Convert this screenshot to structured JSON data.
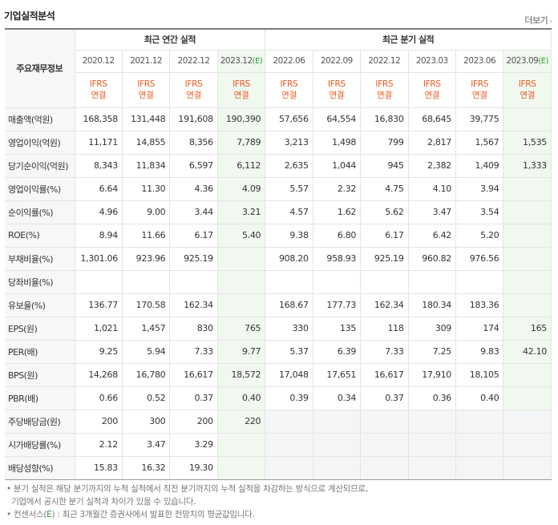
{
  "header": {
    "title": "기업실적분석",
    "more_label": "더보기",
    "more_arrow": "›"
  },
  "table": {
    "row_header_label": "주요재무정보",
    "groups": {
      "annual": "최근 연간 실적",
      "quarter": "최근 분기 실적"
    },
    "annual_periods": [
      "2020.12",
      "2021.12",
      "2022.12",
      "2023.12"
    ],
    "annual_est_suffix": "(E)",
    "quarter_periods": [
      "2022.06",
      "2022.09",
      "2022.12",
      "2023.03",
      "2023.06",
      "2023.09"
    ],
    "quarter_est_suffix": "(E)",
    "ifrs_top": "IFRS",
    "ifrs_bottom": "연결",
    "rows": [
      {
        "label": "매출액(억원)",
        "cells": [
          "168,358",
          "131,448",
          "191,608",
          "190,390",
          "57,656",
          "64,554",
          "16,830",
          "68,645",
          "39,775",
          ""
        ]
      },
      {
        "label": "영업이익(억원)",
        "cells": [
          "11,171",
          "14,855",
          "8,356",
          "7,789",
          "3,213",
          "1,498",
          "799",
          "2,817",
          "1,567",
          "1,535"
        ]
      },
      {
        "label": "당기순이익(억원)",
        "cells": [
          "8,343",
          "11,834",
          "6,597",
          "6,112",
          "2,635",
          "1,044",
          "945",
          "2,382",
          "1,409",
          "1,333"
        ]
      },
      {
        "label": "영업이익률(%)",
        "cells": [
          "6.64",
          "11.30",
          "4.36",
          "4.09",
          "5.57",
          "2.32",
          "4.75",
          "4.10",
          "3.94",
          ""
        ]
      },
      {
        "label": "순이익률(%)",
        "cells": [
          "4.96",
          "9.00",
          "3.44",
          "3.21",
          "4.57",
          "1.62",
          "5.62",
          "3.47",
          "3.54",
          ""
        ]
      },
      {
        "label": "ROE(%)",
        "cells": [
          "8.94",
          "11.66",
          "6.17",
          "5.40",
          "9.38",
          "6.80",
          "6.17",
          "6.42",
          "5.20",
          ""
        ]
      },
      {
        "label": "부채비율(%)",
        "cells": [
          "1,301.06",
          "923.96",
          "925.19",
          "",
          "908.20",
          "958.93",
          "925.19",
          "960.82",
          "976.56",
          ""
        ]
      },
      {
        "label": "당좌비율(%)",
        "cells": [
          "",
          "",
          "",
          "",
          "",
          "",
          "",
          "",
          "",
          ""
        ]
      },
      {
        "label": "유보율(%)",
        "cells": [
          "136.77",
          "170.58",
          "162.34",
          "",
          "168.67",
          "177.73",
          "162.34",
          "180.34",
          "183.36",
          ""
        ]
      },
      {
        "label": "EPS(원)",
        "cells": [
          "1,021",
          "1,457",
          "830",
          "765",
          "330",
          "135",
          "118",
          "309",
          "174",
          "165"
        ]
      },
      {
        "label": "PER(배)",
        "cells": [
          "9.25",
          "5.94",
          "7.33",
          "9.77",
          "5.37",
          "6.39",
          "7.33",
          "7.25",
          "9.83",
          "42.10"
        ]
      },
      {
        "label": "BPS(원)",
        "cells": [
          "14,268",
          "16,780",
          "16,617",
          "18,572",
          "17,048",
          "17,651",
          "16,617",
          "17,910",
          "18,105",
          ""
        ]
      },
      {
        "label": "PBR(배)",
        "cells": [
          "0.66",
          "0.52",
          "0.37",
          "0.40",
          "0.39",
          "0.34",
          "0.37",
          "0.36",
          "0.40",
          ""
        ]
      },
      {
        "label": "주당배당금(원)",
        "cells": [
          "200",
          "300",
          "200",
          "220",
          "",
          "",
          "",
          "",
          "",
          ""
        ]
      },
      {
        "label": "시가배당률(%)",
        "cells": [
          "2.12",
          "3.47",
          "3.29",
          "",
          "",
          "",
          "",
          "",
          "",
          ""
        ]
      },
      {
        "label": "배당성향(%)",
        "cells": [
          "15.83",
          "16.32",
          "19.30",
          "",
          "",
          "",
          "",
          "",
          "",
          ""
        ]
      }
    ]
  },
  "notes": {
    "line1": "• 분기 실적은 해당 분기까지의 누적 실적에서 직전 분기까지의 누적 실적을 차감하는 방식으로 계산되므로,",
    "line2": "  기업에서 공시한 분기 실적과 차이가 있을 수 있습니다.",
    "line3_pre": "• 컨센서스(",
    "line3_e": "E",
    "line3_post": ") : 최근 3개월간 증권사에서 발표한 전망치의 평균값입니다."
  },
  "colors": {
    "ifrs": "#e8591d",
    "estimate": "#339933",
    "estimate_bg": "#f0f8ef"
  }
}
